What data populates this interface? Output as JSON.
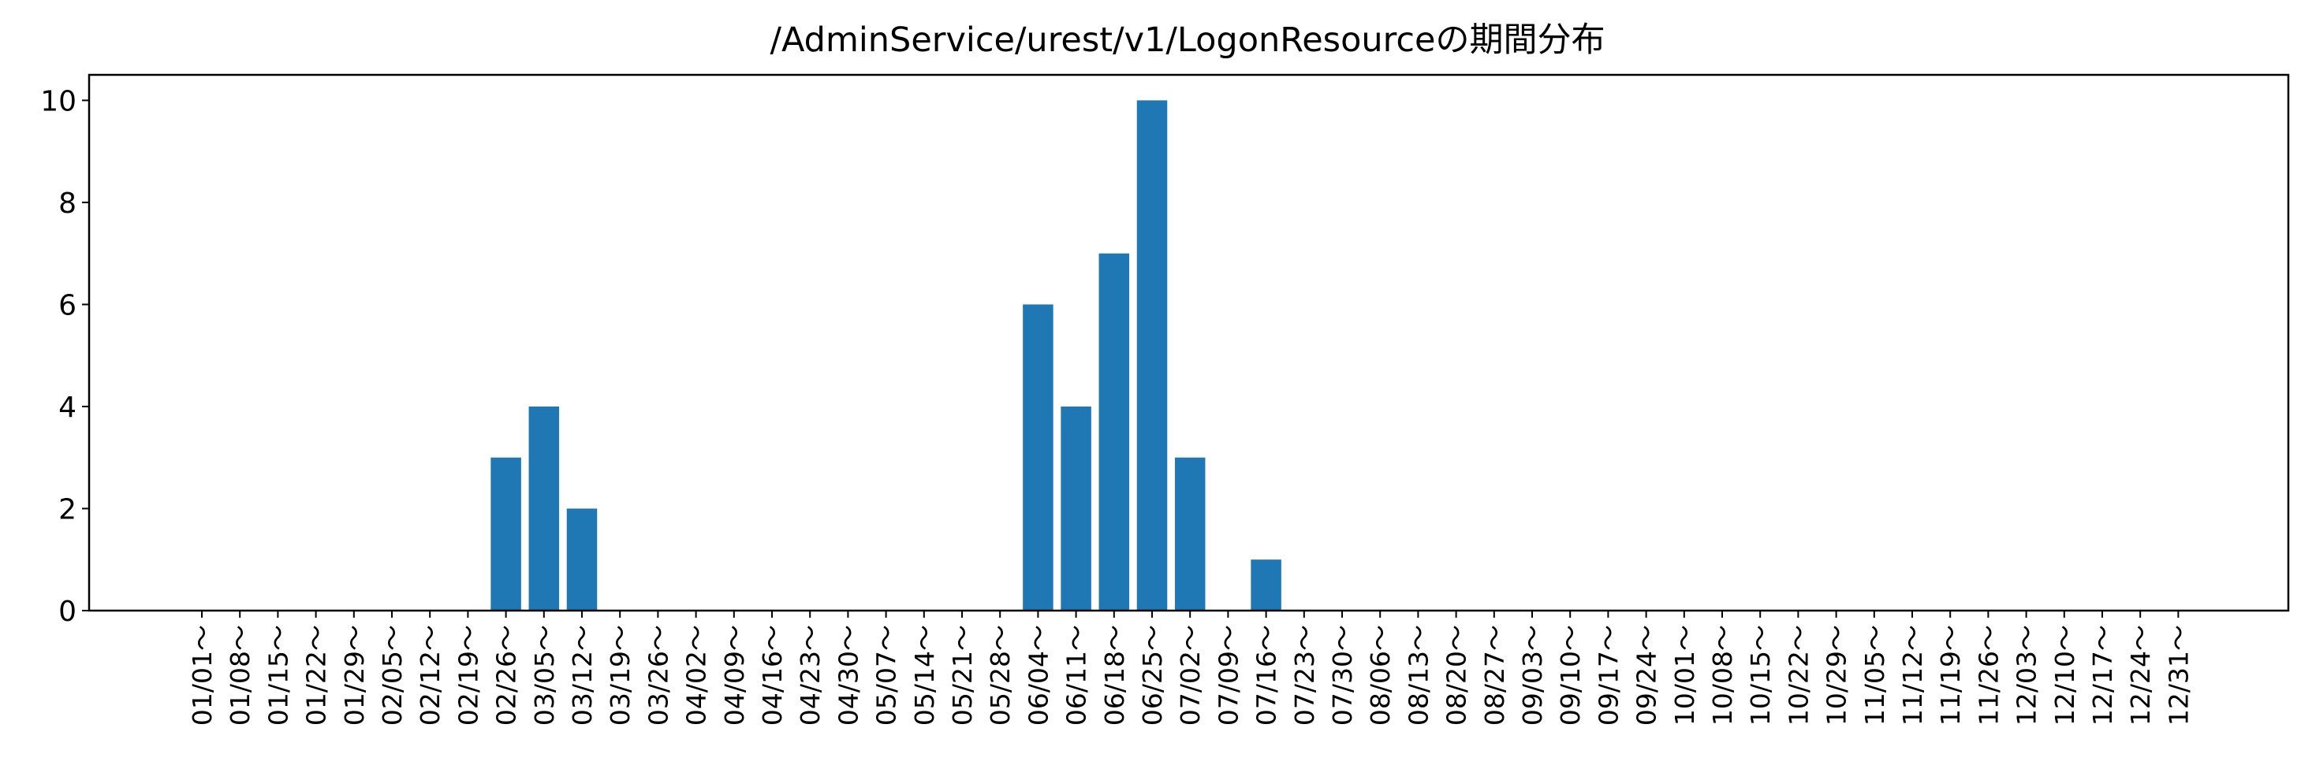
{
  "chart_data": {
    "type": "bar",
    "title": "/AdminService/urest/v1/LogonResourceの期間分布",
    "xlabel": "",
    "ylabel": "",
    "ylim": [
      0,
      10.5
    ],
    "yticks": [
      0,
      2,
      4,
      6,
      8,
      10
    ],
    "grid": false,
    "bar_color": "#1f77b4",
    "categories": [
      "01/01～",
      "01/08～",
      "01/15～",
      "01/22～",
      "01/29～",
      "02/05～",
      "02/12～",
      "02/19～",
      "02/26～",
      "03/05～",
      "03/12～",
      "03/19～",
      "03/26～",
      "04/02～",
      "04/09～",
      "04/16～",
      "04/23～",
      "04/30～",
      "05/07～",
      "05/14～",
      "05/21～",
      "05/28～",
      "06/04～",
      "06/11～",
      "06/18～",
      "06/25～",
      "07/02～",
      "07/09～",
      "07/16～",
      "07/23～",
      "07/30～",
      "08/06～",
      "08/13～",
      "08/20～",
      "08/27～",
      "09/03～",
      "09/10～",
      "09/17～",
      "09/24～",
      "10/01～",
      "10/08～",
      "10/15～",
      "10/22～",
      "10/29～",
      "11/05～",
      "11/12～",
      "11/19～",
      "11/26～",
      "12/03～",
      "12/10～",
      "12/17～",
      "12/24～",
      "12/31～"
    ],
    "values": [
      0,
      0,
      0,
      0,
      0,
      0,
      0,
      0,
      3,
      4,
      2,
      0,
      0,
      0,
      0,
      0,
      0,
      0,
      0,
      0,
      0,
      0,
      6,
      4,
      7,
      10,
      3,
      0,
      1,
      0,
      0,
      0,
      0,
      0,
      0,
      0,
      0,
      0,
      0,
      0,
      0,
      0,
      0,
      0,
      0,
      0,
      0,
      0,
      0,
      0,
      0,
      0,
      0
    ]
  }
}
